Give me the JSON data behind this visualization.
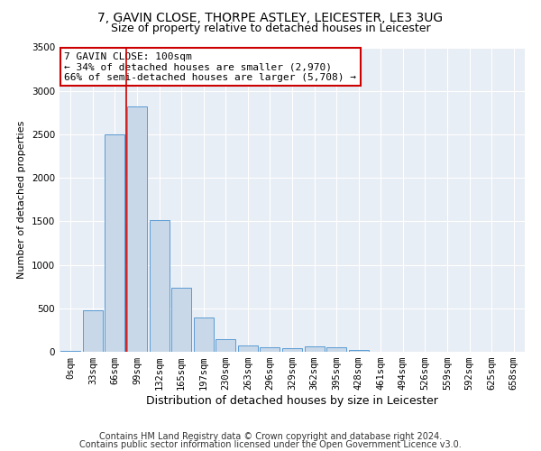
{
  "title": "7, GAVIN CLOSE, THORPE ASTLEY, LEICESTER, LE3 3UG",
  "subtitle": "Size of property relative to detached houses in Leicester",
  "xlabel": "Distribution of detached houses by size in Leicester",
  "ylabel": "Number of detached properties",
  "footnote1": "Contains HM Land Registry data © Crown copyright and database right 2024.",
  "footnote2": "Contains public sector information licensed under the Open Government Licence v3.0.",
  "annotation_line1": "7 GAVIN CLOSE: 100sqm",
  "annotation_line2": "← 34% of detached houses are smaller (2,970)",
  "annotation_line3": "66% of semi-detached houses are larger (5,708) →",
  "bar_color": "#c8d8e8",
  "bar_edge_color": "#5b9bd5",
  "vline_color": "#cc0000",
  "vline_x_index": 3,
  "categories": [
    "0sqm",
    "33sqm",
    "66sqm",
    "99sqm",
    "132sqm",
    "165sqm",
    "197sqm",
    "230sqm",
    "263sqm",
    "296sqm",
    "329sqm",
    "362sqm",
    "395sqm",
    "428sqm",
    "461sqm",
    "494sqm",
    "526sqm",
    "559sqm",
    "592sqm",
    "625sqm",
    "658sqm"
  ],
  "values": [
    15,
    480,
    2500,
    2820,
    1510,
    740,
    390,
    145,
    75,
    50,
    45,
    60,
    55,
    20,
    5,
    3,
    2,
    2,
    1,
    1,
    1
  ],
  "ylim": [
    0,
    3500
  ],
  "yticks": [
    0,
    500,
    1000,
    1500,
    2000,
    2500,
    3000,
    3500
  ],
  "plot_bg_color": "#e8eef5",
  "title_fontsize": 10,
  "subtitle_fontsize": 9,
  "ylabel_fontsize": 8,
  "xlabel_fontsize": 9,
  "footnote_fontsize": 7,
  "annotation_fontsize": 8,
  "tick_fontsize": 7.5
}
